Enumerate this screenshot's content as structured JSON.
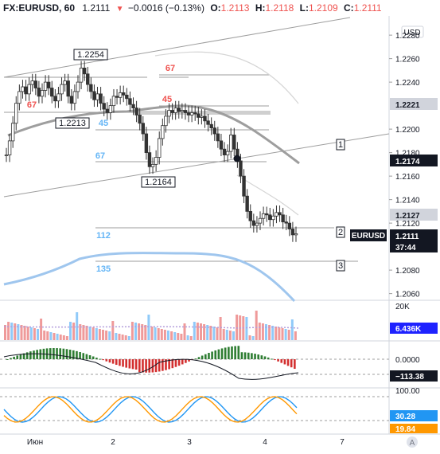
{
  "header": {
    "symbol": "FX:EURUSD, 60",
    "last": "1.2111",
    "change_arrow": "▼",
    "change": "−0.0016 (−0.13%)",
    "o_label": "O:",
    "o": "1.2113",
    "h_label": "H:",
    "h": "1.2118",
    "l_label": "L:",
    "l": "1.2109",
    "c_label": "C:",
    "c": "1.2111"
  },
  "price_axis": {
    "currency": "USD",
    "ticks": [
      "1.2280",
      "1.2260",
      "1.2240",
      "1.2200",
      "1.2180",
      "1.2160",
      "1.2140",
      "1.2120",
      "1.2080",
      "1.2060"
    ],
    "badges": [
      {
        "value": "1.2221",
        "color": "#d1d4dc",
        "text_color": "#131722"
      },
      {
        "value": "1.2174",
        "color": "#131722",
        "text_color": "#ffffff"
      },
      {
        "value": "1.2127",
        "color": "#d1d4dc",
        "text_color": "#131722"
      },
      {
        "value": "1.2111",
        "color": "#131722",
        "text_color": "#ffffff"
      },
      {
        "value": "37:44",
        "color": "#131722",
        "text_color": "#ffffff"
      }
    ],
    "symbol_tag": "EURUSD"
  },
  "annotations": {
    "hi_label": "1.2254",
    "lo_label_1": "1.2213",
    "lo_label_2": "1.2164",
    "fib_labels": [
      "67",
      "67",
      "45",
      "45",
      "67",
      "112",
      "135"
    ],
    "box_labels": [
      "1",
      "2",
      "3"
    ]
  },
  "volume_axis": {
    "top_label": "20K",
    "value_badge": "6.436K",
    "value_badge_color": "#1e22ff"
  },
  "macd_axis": {
    "zero_label": "0.0000",
    "value_badge": "−113.38"
  },
  "stoch_axis": {
    "top_label": "100.00",
    "value_badge": "30.28",
    "value_badge_color": "#2196f3",
    "value2_badge": "19.84",
    "value2_badge_color": "#ff9800"
  },
  "time_axis": {
    "labels": [
      "Июн",
      "2",
      "3",
      "4",
      "7"
    ]
  },
  "chart_data": {
    "type": "candlestick",
    "title": "FX:EURUSD, 60",
    "ylim": [
      1.2055,
      1.2295
    ],
    "close_series": [
      1.2178,
      1.219,
      1.2205,
      1.2222,
      1.2232,
      1.2236,
      1.223,
      1.2238,
      1.2241,
      1.2235,
      1.2228,
      1.2233,
      1.224,
      1.2235,
      1.2228,
      1.2224,
      1.223,
      1.2238,
      1.2241,
      1.2228,
      1.2222,
      1.2232,
      1.224,
      1.2252,
      1.2247,
      1.2238,
      1.2232,
      1.2225,
      1.223,
      1.2222,
      1.2217,
      1.2214,
      1.222,
      1.2228,
      1.2227,
      1.2231,
      1.2229,
      1.2226,
      1.2221,
      1.2218,
      1.2212,
      1.2205,
      1.2196,
      1.218,
      1.2168,
      1.217,
      1.2176,
      1.2192,
      1.2203,
      1.2211,
      1.2216,
      1.2214,
      1.2218,
      1.2215,
      1.2216,
      1.2214,
      1.2212,
      1.2214,
      1.2213,
      1.221,
      1.2211,
      1.2207,
      1.2204,
      1.2201,
      1.2196,
      1.219,
      1.2183,
      1.2178,
      1.2181,
      1.2195,
      1.2183,
      1.2173,
      1.216,
      1.2143,
      1.213,
      1.2122,
      1.2118,
      1.212,
      1.2124,
      1.2128,
      1.2127,
      1.2123,
      1.2126,
      1.2129,
      1.2127,
      1.2121,
      1.212,
      1.2115,
      1.211,
      1.2111
    ]
  }
}
